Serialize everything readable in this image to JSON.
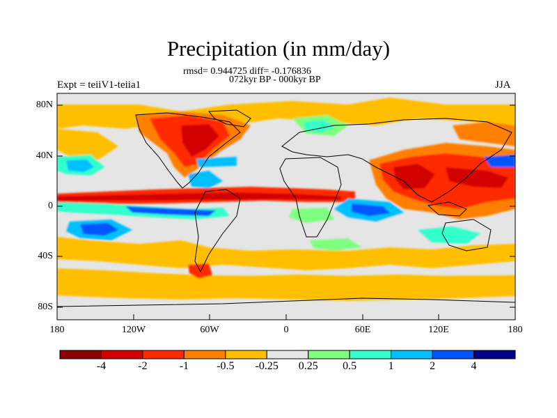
{
  "title": "Precipitation (in mm/day)",
  "stats_text": "rmsd= 0.944725 diff= -0.176836",
  "period_text": "072kyr BP - 000kyr BP",
  "expt_label": "Expt = teiiV1-teiia1",
  "season_label": "JJA",
  "lat_labels": [
    "80N",
    "40N",
    "0",
    "40S",
    "80S"
  ],
  "lon_labels": [
    "180",
    "120W",
    "60W",
    "0",
    "60E",
    "120E",
    "180"
  ],
  "colorbar": {
    "labels": [
      "-4",
      "-2",
      "-1",
      "-0.5",
      "-0.25",
      "0.25",
      "0.5",
      "1",
      "2",
      "4"
    ],
    "colors": [
      "#8b0000",
      "#d30000",
      "#ff2a00",
      "#ff7f00",
      "#ffbf00",
      "#e5e5e5",
      "#7fff7f",
      "#33ffcc",
      "#00bfff",
      "#0055ff",
      "#00008b"
    ]
  }
}
